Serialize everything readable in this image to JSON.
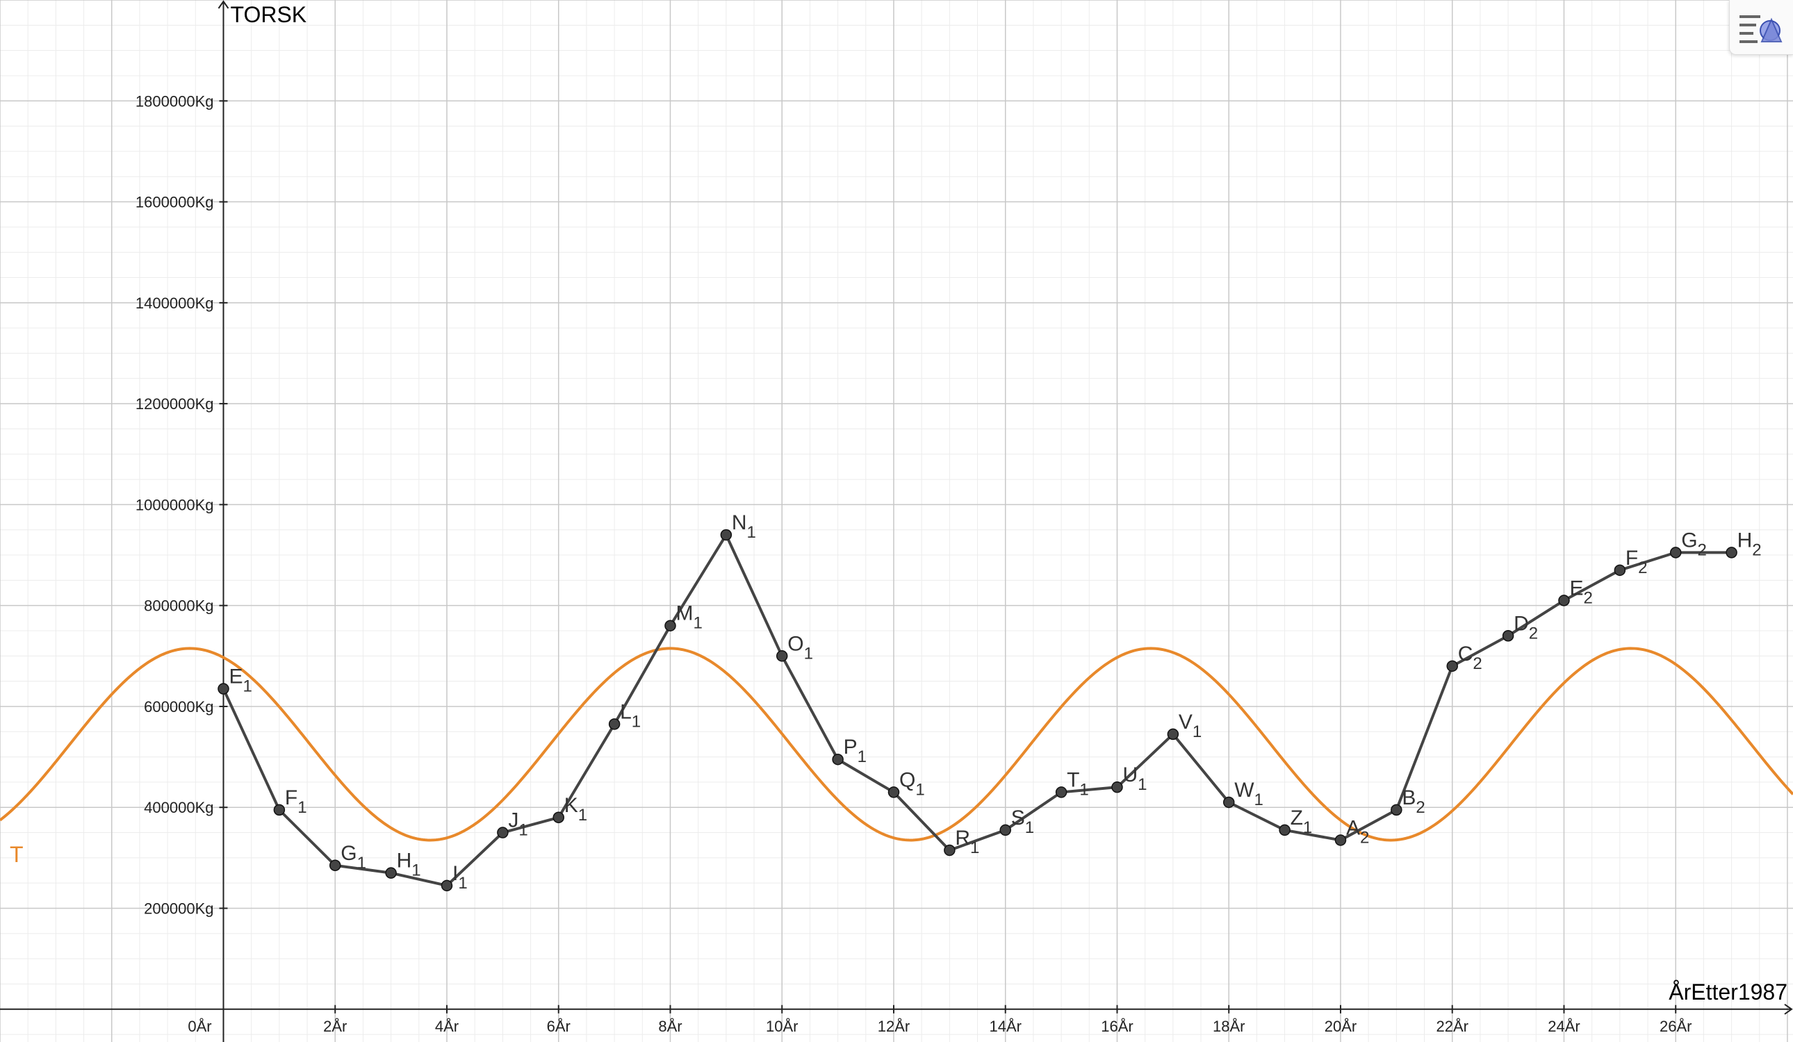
{
  "toolbar": {
    "style_icon": "graphics-style-icon"
  },
  "chart_data": {
    "type": "line",
    "xlabel": "ÅrEtter1987",
    "ylabel": "TORSK",
    "x_unit": "År",
    "y_unit": "Kg",
    "xlim": [
      -4,
      28.1
    ],
    "ylim": [
      -65000,
      2000000
    ],
    "x_ticks": [
      0,
      2,
      4,
      6,
      8,
      10,
      12,
      14,
      16,
      18,
      20,
      22,
      24,
      26
    ],
    "y_ticks": [
      200000,
      400000,
      600000,
      800000,
      1000000,
      1200000,
      1400000,
      1600000,
      1800000
    ],
    "grid": true,
    "colors": {
      "data": "#444444",
      "model": "#e8892b",
      "grid_major": "#c8c8c8",
      "grid_minor": "#ececec"
    },
    "series": [
      {
        "name": "",
        "color": "#444444",
        "points": [
          {
            "label": "E",
            "sub": "1",
            "x": 0,
            "y": 635000
          },
          {
            "label": "F",
            "sub": "1",
            "x": 1,
            "y": 395000
          },
          {
            "label": "G",
            "sub": "1",
            "x": 2,
            "y": 285000
          },
          {
            "label": "H",
            "sub": "1",
            "x": 3,
            "y": 270000
          },
          {
            "label": "I",
            "sub": "1",
            "x": 4,
            "y": 245000
          },
          {
            "label": "J",
            "sub": "1",
            "x": 5,
            "y": 350000
          },
          {
            "label": "K",
            "sub": "1",
            "x": 6,
            "y": 380000
          },
          {
            "label": "L",
            "sub": "1",
            "x": 7,
            "y": 565000
          },
          {
            "label": "M",
            "sub": "1",
            "x": 8,
            "y": 760000
          },
          {
            "label": "N",
            "sub": "1",
            "x": 9,
            "y": 940000
          },
          {
            "label": "O",
            "sub": "1",
            "x": 10,
            "y": 700000
          },
          {
            "label": "P",
            "sub": "1",
            "x": 11,
            "y": 495000
          },
          {
            "label": "Q",
            "sub": "1",
            "x": 12,
            "y": 430000
          },
          {
            "label": "R",
            "sub": "1",
            "x": 13,
            "y": 315000
          },
          {
            "label": "S",
            "sub": "1",
            "x": 14,
            "y": 355000
          },
          {
            "label": "T",
            "sub": "1",
            "x": 15,
            "y": 430000
          },
          {
            "label": "U",
            "sub": "1",
            "x": 16,
            "y": 440000
          },
          {
            "label": "V",
            "sub": "1",
            "x": 17,
            "y": 545000
          },
          {
            "label": "W",
            "sub": "1",
            "x": 18,
            "y": 410000
          },
          {
            "label": "Z",
            "sub": "1",
            "x": 19,
            "y": 355000
          },
          {
            "label": "A",
            "sub": "2",
            "x": 20,
            "y": 335000
          },
          {
            "label": "B",
            "sub": "2",
            "x": 21,
            "y": 395000
          },
          {
            "label": "C",
            "sub": "2",
            "x": 22,
            "y": 680000
          },
          {
            "label": "D",
            "sub": "2",
            "x": 23,
            "y": 740000
          },
          {
            "label": "E",
            "sub": "2",
            "x": 24,
            "y": 810000
          },
          {
            "label": "F",
            "sub": "2",
            "x": 25,
            "y": 870000
          },
          {
            "label": "G",
            "sub": "2",
            "x": 26,
            "y": 905000
          },
          {
            "label": "H",
            "sub": "2",
            "x": 27,
            "y": 905000
          }
        ]
      }
    ],
    "function": {
      "name": "T",
      "color": "#e8892b",
      "form": "sine",
      "mid": 525000,
      "amplitude": 190000,
      "period": 8.6,
      "peak_x": 8.0
    }
  }
}
